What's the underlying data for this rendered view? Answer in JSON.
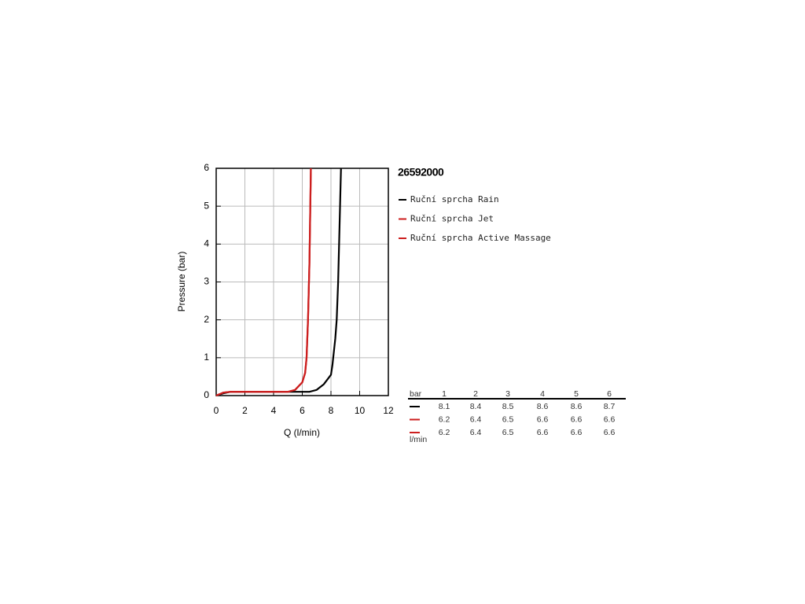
{
  "chart_data": {
    "type": "line",
    "title": "26592000",
    "xlabel": "Q (l/min)",
    "ylabel": "Pressure (bar)",
    "xlim": [
      0,
      12
    ],
    "ylim": [
      0,
      6
    ],
    "xticks": [
      0,
      2,
      4,
      6,
      8,
      10,
      12
    ],
    "yticks": [
      0,
      1,
      2,
      3,
      4,
      5,
      6
    ],
    "grid": true,
    "series": [
      {
        "name": "Ruční sprcha Rain",
        "color": "#000000",
        "x": [
          0,
          0.5,
          1,
          3,
          5,
          6.5,
          7,
          7.5,
          8,
          8.1,
          8.3,
          8.4,
          8.5,
          8.6,
          8.7
        ],
        "values": [
          0,
          0.06,
          0.1,
          0.1,
          0.1,
          0.1,
          0.15,
          0.3,
          0.55,
          0.8,
          1.5,
          2,
          3,
          4.5,
          6
        ]
      },
      {
        "name": "Ruční sprcha Jet",
        "color": "#cc1e1e",
        "x": [
          0,
          0.5,
          1,
          3,
          5,
          5.5,
          6,
          6.2,
          6.3,
          6.4,
          6.5,
          6.6
        ],
        "values": [
          0,
          0.08,
          0.1,
          0.1,
          0.1,
          0.15,
          0.35,
          0.6,
          1,
          2,
          3.5,
          6
        ]
      },
      {
        "name": "Ruční sprcha Active Massage",
        "color": "#cc1e1e",
        "x": [
          0,
          0.5,
          1,
          3,
          5,
          5.5,
          6,
          6.2,
          6.3,
          6.4,
          6.5,
          6.6
        ],
        "values": [
          0,
          0.08,
          0.1,
          0.1,
          0.1,
          0.15,
          0.35,
          0.6,
          1,
          2,
          3.5,
          6
        ]
      }
    ]
  },
  "table": {
    "unit": "bar",
    "pressures": [
      1,
      2,
      3,
      4,
      5,
      6
    ],
    "rows": [
      [
        8.1,
        8.4,
        8.5,
        8.6,
        8.6,
        8.7
      ],
      [
        6.2,
        6.4,
        6.5,
        6.6,
        6.6,
        6.6
      ],
      [
        6.2,
        6.4,
        6.5,
        6.6,
        6.6,
        6.6
      ]
    ],
    "footer": "l/min"
  }
}
